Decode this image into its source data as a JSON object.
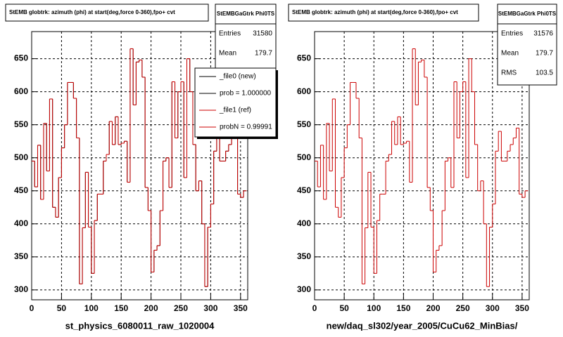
{
  "chart_data": [
    {
      "type": "histogram",
      "title": "StEMB globtrk: azimuth (phi) at start(deg,force 0-360),fpo+ cvt",
      "stats_title": "StEMBGaGtrk Phi0TS",
      "stats": [
        {
          "label": "Entries",
          "value": 31580
        },
        {
          "label": "Mean",
          "value": 179.7
        }
      ],
      "xlabel": "st_physics_6080011_raw_1020004",
      "annotations": [
        "prob = 1.000000",
        "probN = 0.99991"
      ],
      "bins": [
        0,
        5,
        10,
        15,
        20,
        25,
        30,
        35,
        40,
        45,
        50,
        55,
        60,
        65,
        70,
        75,
        80,
        85,
        90,
        95,
        100,
        105,
        110,
        115,
        120,
        125,
        130,
        135,
        140,
        145,
        150,
        155,
        160,
        165,
        170,
        175,
        180,
        185,
        190,
        195,
        200,
        205,
        210,
        215,
        220,
        225,
        230,
        235,
        240,
        245,
        250,
        255,
        260,
        265,
        270,
        275,
        280,
        285,
        290,
        295,
        300,
        305,
        310,
        315,
        320,
        325,
        330,
        335,
        340,
        345,
        350,
        355,
        360
      ],
      "series": [
        {
          "name": "_file0 (new)",
          "color": "#000000",
          "values": [
            495,
            456,
            519,
            437,
            552,
            480,
            589,
            425,
            410,
            470,
            515,
            550,
            614,
            614,
            590,
            530,
            309,
            394,
            478,
            395,
            325,
            405,
            445,
            445,
            495,
            505,
            555,
            520,
            562,
            520,
            522,
            525,
            463,
            665,
            580,
            645,
            648,
            622,
            455,
            420,
            327,
            360,
            367,
            420,
            495,
            500,
            455,
            615,
            530,
            600,
            615,
            470,
            650,
            600,
            520,
            450,
            465,
            400,
            305,
            395,
            430,
            510,
            540,
            495,
            495,
            510,
            520,
            530,
            545,
            445,
            440,
            450
          ]
        },
        {
          "name": "_file1 (ref)",
          "color": "#cc0000",
          "values": [
            495,
            456,
            519,
            437,
            552,
            480,
            589,
            425,
            410,
            470,
            515,
            550,
            614,
            614,
            590,
            530,
            309,
            394,
            478,
            395,
            325,
            405,
            445,
            445,
            495,
            505,
            555,
            520,
            562,
            520,
            522,
            525,
            463,
            665,
            580,
            645,
            648,
            622,
            455,
            420,
            327,
            360,
            367,
            420,
            495,
            500,
            455,
            615,
            530,
            600,
            615,
            470,
            650,
            600,
            520,
            450,
            465,
            400,
            305,
            395,
            430,
            510,
            540,
            495,
            495,
            510,
            520,
            530,
            545,
            445,
            440,
            450
          ]
        }
      ],
      "xlim": [
        0,
        362
      ],
      "ylim": [
        285,
        691
      ],
      "xticks": [
        0,
        50,
        100,
        150,
        200,
        250,
        300,
        350
      ],
      "yticks": [
        300,
        350,
        400,
        450,
        500,
        550,
        600,
        650
      ],
      "grid": true
    },
    {
      "type": "histogram",
      "title": "StEMB globtrk: azimuth (phi) at start(deg,force 0-360),fpo+ cvt",
      "stats_title": "StEMBGaGtrk Phi0TS",
      "stats": [
        {
          "label": "Entries",
          "value": 31576
        },
        {
          "label": "Mean",
          "value": 179.7
        },
        {
          "label": "RMS",
          "value": 103.5
        }
      ],
      "xlabel": "new/daq_sl302/year_2005/CuCu62_MinBias/",
      "bins": [
        0,
        5,
        10,
        15,
        20,
        25,
        30,
        35,
        40,
        45,
        50,
        55,
        60,
        65,
        70,
        75,
        80,
        85,
        90,
        95,
        100,
        105,
        110,
        115,
        120,
        125,
        130,
        135,
        140,
        145,
        150,
        155,
        160,
        165,
        170,
        175,
        180,
        185,
        190,
        195,
        200,
        205,
        210,
        215,
        220,
        225,
        230,
        235,
        240,
        245,
        250,
        255,
        260,
        265,
        270,
        275,
        280,
        285,
        290,
        295,
        300,
        305,
        310,
        315,
        320,
        325,
        330,
        335,
        340,
        345,
        350,
        355,
        360
      ],
      "series": [
        {
          "color": "#cc0000",
          "values": [
            495,
            456,
            519,
            437,
            552,
            480,
            589,
            425,
            410,
            470,
            515,
            550,
            614,
            614,
            590,
            530,
            309,
            394,
            478,
            395,
            325,
            405,
            445,
            445,
            495,
            505,
            555,
            520,
            562,
            520,
            522,
            525,
            463,
            665,
            580,
            645,
            648,
            622,
            455,
            420,
            327,
            360,
            367,
            420,
            495,
            500,
            455,
            615,
            530,
            600,
            615,
            470,
            650,
            600,
            520,
            450,
            465,
            400,
            305,
            395,
            430,
            510,
            540,
            495,
            495,
            510,
            520,
            530,
            545,
            445,
            440,
            450
          ]
        }
      ],
      "xlim": [
        0,
        362
      ],
      "ylim": [
        285,
        691
      ],
      "xticks": [
        0,
        50,
        100,
        150,
        200,
        250,
        300,
        350
      ],
      "yticks": [
        300,
        350,
        400,
        450,
        500,
        550,
        600,
        650
      ],
      "grid": true
    }
  ]
}
